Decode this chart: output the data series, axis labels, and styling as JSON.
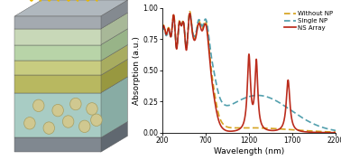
{
  "title": "",
  "xlabel": "Wavelength (nm)",
  "ylabel": "Absorption (a.u.)",
  "xlim": [
    200,
    2200
  ],
  "ylim": [
    0,
    1.0
  ],
  "yticks": [
    0,
    0.25,
    0.5,
    0.75,
    1.0
  ],
  "xticks": [
    200,
    700,
    1200,
    1700,
    2200
  ],
  "legend": [
    {
      "label": "Without NP",
      "color": "#D4A017",
      "linestyle": "--",
      "linewidth": 1.2
    },
    {
      "label": "Single NP",
      "color": "#4A9BAA",
      "linestyle": "--",
      "linewidth": 1.2
    },
    {
      "label": "NS Array",
      "color": "#B82010",
      "linestyle": "-",
      "linewidth": 1.2
    }
  ],
  "background_color": "#ffffff",
  "schematic": {
    "layer_colors": {
      "top_cap": "#a8aeb4",
      "ito": "#a8aeb4",
      "light_green1": "#c0d8b8",
      "light_green2": "#b8d0a8",
      "yellow_green": "#c8cc80",
      "olive": "#b0b860",
      "teal": "#a8ccc8",
      "bottom": "#808890"
    },
    "np_color": "#d0c890",
    "np_edge": "#a89e60",
    "arrow_color": "#e8b800",
    "arrow_edge": "#c09000"
  }
}
